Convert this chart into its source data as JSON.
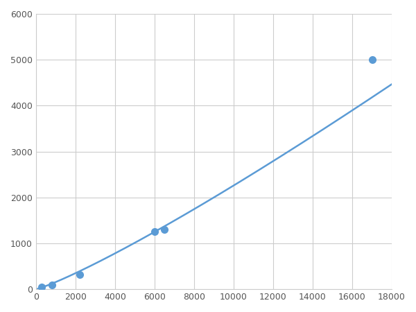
{
  "x": [
    300,
    800,
    2200,
    6000,
    6500,
    17000
  ],
  "y": [
    50,
    100,
    320,
    1260,
    1300,
    5000
  ],
  "line_color": "#5b9bd5",
  "marker_color": "#5b9bd5",
  "marker_size": 7,
  "line_width": 1.8,
  "xlim": [
    0,
    18000
  ],
  "ylim": [
    0,
    6000
  ],
  "xticks": [
    0,
    2000,
    4000,
    6000,
    8000,
    10000,
    12000,
    14000,
    16000,
    18000
  ],
  "yticks": [
    0,
    1000,
    2000,
    3000,
    4000,
    5000,
    6000
  ],
  "grid_color": "#cccccc",
  "background_color": "#ffffff",
  "figsize": [
    6.0,
    4.5
  ],
  "dpi": 100
}
